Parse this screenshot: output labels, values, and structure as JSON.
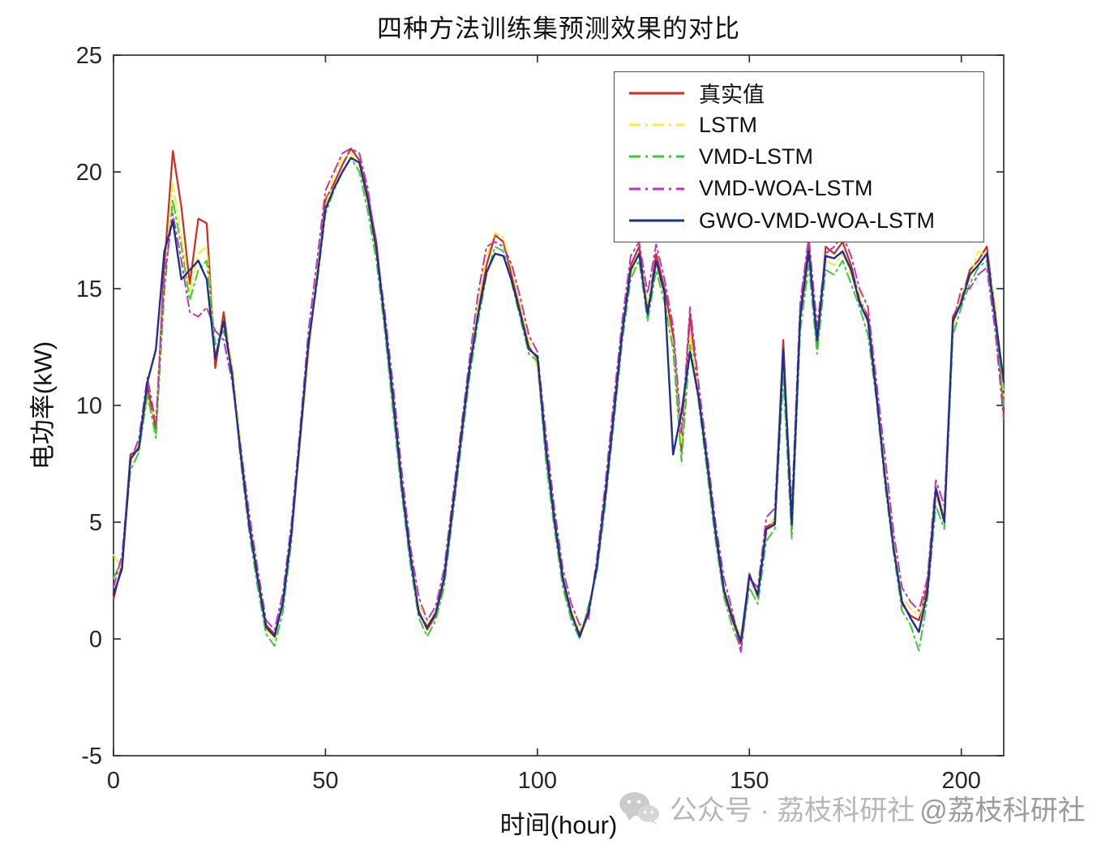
{
  "page": {
    "background": "#ffffff"
  },
  "chart_data": {
    "type": "line",
    "title": "四种方法训练集预测效果的对比",
    "xlabel": "时间(hour)",
    "ylabel": "电功率(kW)",
    "xlim": [
      0,
      210
    ],
    "ylim": [
      -5,
      25
    ],
    "x_ticks": [
      0,
      50,
      100,
      150,
      200
    ],
    "y_ticks": [
      -5,
      0,
      5,
      10,
      15,
      20,
      25
    ],
    "grid": false,
    "legend_position": "northeast",
    "x_start": 0,
    "x_step": 2,
    "series": [
      {
        "name": "真实值",
        "color": "#d22a1c",
        "style": "solid",
        "width": 2.2,
        "values": [
          1.7,
          3.2,
          7.9,
          8.1,
          10.8,
          9.0,
          16.0,
          20.9,
          18.5,
          15.2,
          18.0,
          17.8,
          11.6,
          14.0,
          11.2,
          8.0,
          5.0,
          2.5,
          0.6,
          0.2,
          1.5,
          4.5,
          8.5,
          12.5,
          15.5,
          18.8,
          19.5,
          20.3,
          21.0,
          20.5,
          19.0,
          17.0,
          13.5,
          10.0,
          6.5,
          3.5,
          1.2,
          0.4,
          1.0,
          2.5,
          5.5,
          8.5,
          11.5,
          14.0,
          16.0,
          17.3,
          17.0,
          15.5,
          14.0,
          12.5,
          12.0,
          8.0,
          5.0,
          2.5,
          1.0,
          0.2,
          1.2,
          3.0,
          6.0,
          9.5,
          13.0,
          16.0,
          16.8,
          14.0,
          16.5,
          15.0,
          13.0,
          8.0,
          13.9,
          10.5,
          7.5,
          4.5,
          2.0,
          0.8,
          -0.2,
          2.8,
          1.8,
          4.8,
          5.0,
          12.8,
          4.7,
          14.0,
          16.9,
          12.5,
          16.8,
          16.5,
          17.0,
          16.0,
          14.5,
          13.8,
          10.5,
          7.0,
          4.0,
          1.5,
          1.0,
          0.8,
          2.3,
          6.5,
          5.1,
          13.8,
          14.5,
          15.8,
          16.2,
          16.8,
          14.0,
          9.8
        ]
      },
      {
        "name": "LSTM",
        "color": "#f1ee35",
        "style": "dashdot",
        "width": 2.0,
        "values": [
          3.6,
          3.0,
          7.5,
          8.4,
          10.2,
          9.4,
          15.2,
          19.5,
          17.2,
          14.8,
          16.5,
          16.8,
          12.2,
          13.5,
          11.8,
          8.4,
          5.2,
          2.8,
          0.4,
          -0.1,
          1.8,
          4.8,
          8.2,
          12.0,
          15.8,
          18.5,
          19.8,
          20.6,
          20.8,
          20.2,
          18.6,
          16.5,
          13.8,
          10.4,
          6.8,
          3.8,
          1.5,
          0.6,
          1.2,
          2.8,
          5.8,
          8.8,
          11.8,
          14.4,
          16.4,
          17.4,
          17.2,
          15.8,
          14.3,
          12.8,
          11.6,
          8.4,
          5.3,
          2.8,
          1.2,
          0.4,
          1.0,
          3.2,
          6.3,
          9.8,
          13.3,
          15.6,
          16.4,
          14.4,
          16.0,
          14.6,
          12.6,
          8.4,
          13.0,
          10.8,
          7.8,
          4.8,
          2.3,
          1.0,
          0.2,
          2.4,
          2.0,
          4.4,
          5.3,
          11.8,
          5.2,
          13.5,
          16.4,
          13.0,
          16.2,
          16.0,
          16.5,
          15.6,
          14.8,
          13.4,
          10.8,
          7.4,
          4.3,
          1.8,
          1.3,
          1.0,
          2.0,
          6.0,
          5.4,
          13.2,
          14.8,
          15.4,
          16.6,
          16.4,
          14.4,
          10.4
        ]
      },
      {
        "name": "VMD-LSTM",
        "color": "#38cb38",
        "style": "dashdot",
        "width": 2.0,
        "values": [
          2.6,
          3.4,
          7.2,
          8.0,
          10.5,
          8.6,
          14.8,
          18.8,
          16.8,
          14.5,
          15.8,
          16.2,
          12.6,
          13.2,
          11.5,
          7.6,
          4.6,
          2.2,
          0.2,
          -0.3,
          1.2,
          4.2,
          8.8,
          12.8,
          15.2,
          18.2,
          19.2,
          20.0,
          20.6,
          20.0,
          18.3,
          16.2,
          13.2,
          9.6,
          6.2,
          3.2,
          0.9,
          0.1,
          0.8,
          2.2,
          5.2,
          8.2,
          11.2,
          13.6,
          15.6,
          16.8,
          16.6,
          15.2,
          13.7,
          12.2,
          11.9,
          7.6,
          4.7,
          2.2,
          0.8,
          0.0,
          1.4,
          2.8,
          5.7,
          9.2,
          12.7,
          15.4,
          16.2,
          13.6,
          15.8,
          14.4,
          12.4,
          7.6,
          12.6,
          10.2,
          7.2,
          4.2,
          1.8,
          0.5,
          -0.4,
          2.2,
          1.5,
          4.2,
          4.7,
          11.2,
          4.3,
          13.2,
          16.0,
          12.2,
          15.8,
          15.6,
          16.2,
          15.2,
          14.2,
          13.0,
          10.2,
          6.6,
          3.7,
          1.2,
          0.6,
          -0.5,
          1.7,
          5.7,
          4.7,
          13.0,
          14.2,
          15.2,
          15.9,
          16.2,
          13.6,
          10.0
        ]
      },
      {
        "name": "VMD-WOA-LSTM",
        "color": "#bd36bd",
        "style": "dashdot",
        "width": 2.0,
        "values": [
          2.2,
          3.6,
          7.6,
          8.6,
          11.2,
          9.2,
          15.5,
          18.2,
          16.2,
          14.0,
          13.8,
          14.2,
          13.2,
          12.8,
          11.0,
          8.2,
          5.4,
          3.0,
          0.8,
          0.4,
          2.0,
          5.0,
          9.0,
          13.2,
          16.2,
          19.2,
          20.0,
          20.8,
          21.0,
          20.8,
          19.3,
          16.8,
          14.0,
          10.8,
          7.2,
          4.0,
          1.8,
          0.8,
          1.4,
          3.0,
          6.0,
          9.0,
          12.0,
          14.8,
          16.8,
          17.0,
          16.8,
          16.0,
          14.6,
          13.0,
          12.3,
          8.8,
          5.6,
          3.0,
          1.5,
          0.6,
          0.8,
          3.4,
          6.6,
          10.2,
          13.6,
          16.4,
          17.0,
          14.8,
          16.9,
          15.4,
          13.4,
          8.8,
          14.2,
          11.0,
          8.0,
          5.0,
          2.6,
          1.2,
          -0.6,
          2.6,
          2.2,
          5.2,
          5.6,
          12.2,
          5.6,
          14.4,
          17.2,
          13.4,
          16.5,
          16.8,
          17.3,
          16.4,
          15.0,
          14.2,
          11.0,
          7.8,
          4.6,
          2.2,
          1.6,
          1.2,
          2.6,
          6.8,
          5.7,
          13.5,
          15.0,
          15.0,
          15.6,
          15.9,
          13.2,
          9.4
        ]
      },
      {
        "name": "GWO-VMD-WOA-LSTM",
        "color": "#202f90",
        "style": "solid",
        "width": 2.4,
        "values": [
          1.9,
          3.0,
          7.7,
          8.2,
          11.0,
          12.4,
          16.6,
          17.9,
          15.4,
          15.8,
          16.2,
          15.4,
          12.0,
          13.6,
          11.3,
          7.9,
          4.9,
          2.6,
          0.5,
          0.1,
          1.6,
          4.6,
          8.6,
          12.6,
          15.4,
          18.4,
          19.3,
          20.0,
          20.6,
          20.4,
          18.8,
          16.7,
          13.6,
          10.2,
          6.6,
          3.6,
          1.1,
          0.5,
          1.1,
          2.6,
          5.6,
          8.6,
          11.6,
          13.9,
          15.7,
          16.5,
          16.4,
          15.3,
          13.9,
          12.4,
          12.1,
          8.2,
          5.1,
          2.6,
          1.1,
          0.1,
          1.1,
          3.1,
          6.1,
          9.6,
          13.1,
          15.8,
          16.5,
          13.9,
          16.2,
          14.8,
          7.9,
          9.7,
          12.3,
          10.4,
          7.6,
          4.6,
          2.1,
          0.9,
          -0.1,
          2.7,
          1.9,
          4.7,
          4.9,
          12.4,
          4.9,
          13.8,
          16.6,
          12.8,
          16.4,
          16.3,
          16.6,
          15.8,
          14.4,
          13.6,
          10.4,
          6.9,
          3.9,
          1.6,
          0.9,
          0.3,
          2.0,
          6.4,
          5.0,
          13.6,
          14.4,
          15.6,
          16.0,
          16.5,
          13.8,
          11.0
        ]
      }
    ]
  },
  "watermark": {
    "icon": "wechat-icon",
    "text_left": "公众号 · 荔枝科研社",
    "text_right": "@荔枝科研社"
  }
}
